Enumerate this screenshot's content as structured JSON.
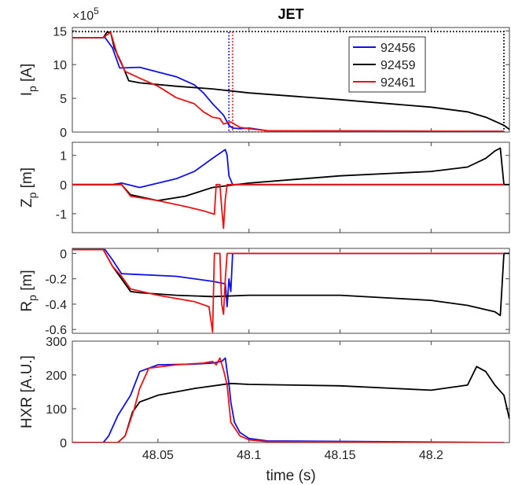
{
  "figure": {
    "title": "JET",
    "xlabel": "time (s)",
    "x_ticks": [
      "48.05",
      "48.1",
      "48.15",
      "48.2"
    ],
    "legend": [
      "92456",
      "92459",
      "92461"
    ]
  },
  "colors": {
    "92456": "#1010ee",
    "92459": "#000000",
    "92461": "#ee1111"
  },
  "chart_data": [
    {
      "type": "line",
      "id": "ip",
      "title": "JET",
      "ylabel_main": "I",
      "ylabel_sub": "p",
      "ylabel_unit": " [A]",
      "multiplier_base": "×10",
      "multiplier_exp": "5",
      "xlim": [
        48.003,
        48.243
      ],
      "ylim": [
        0,
        15.5
      ],
      "y_ticks": [
        "0",
        "5",
        "10",
        "15"
      ],
      "y_tick_values": [
        0,
        5,
        10,
        15
      ],
      "legend": {
        "placement": "top-right",
        "entries": [
          "92456",
          "92459",
          "92461"
        ]
      },
      "series": [
        {
          "name": "92456",
          "color": "#1010ee",
          "x": [
            48.003,
            48.021,
            48.025,
            48.029,
            48.04,
            48.06,
            48.07,
            48.075,
            48.08,
            48.086,
            48.089,
            48.091,
            48.095,
            48.1,
            48.11,
            48.24
          ],
          "y": [
            14.0,
            14.0,
            12.5,
            9.5,
            9.6,
            8.2,
            7.0,
            5.8,
            4.2,
            2.5,
            1.0,
            0.6,
            0.5,
            0.6,
            0.2,
            0.1
          ]
        },
        {
          "name": "92459",
          "color": "#000000",
          "x": [
            48.003,
            48.02,
            48.022,
            48.024,
            48.026,
            48.03,
            48.034,
            48.04,
            48.06,
            48.08,
            48.1,
            48.15,
            48.2,
            48.22,
            48.23,
            48.24,
            48.243
          ],
          "y": [
            14.0,
            14.0,
            14.8,
            14.8,
            12.5,
            10.2,
            7.6,
            7.3,
            6.8,
            6.4,
            5.8,
            4.8,
            3.7,
            3.0,
            2.2,
            1.0,
            0.4
          ]
        },
        {
          "name": "92461",
          "color": "#ee1111",
          "x": [
            48.003,
            48.02,
            48.024,
            48.028,
            48.032,
            48.04,
            48.05,
            48.06,
            48.07,
            48.075,
            48.08,
            48.084,
            48.086,
            48.09,
            48.095,
            48.1,
            48.11,
            48.24
          ],
          "y": [
            14.0,
            14.0,
            14.8,
            11.2,
            9.0,
            8.0,
            6.8,
            5.1,
            4.2,
            3.0,
            2.2,
            2.0,
            1.2,
            1.5,
            0.7,
            0.5,
            0.2,
            0.1
          ]
        }
      ],
      "reference_series": [
        {
          "name": "92456",
          "color": "#1010ee",
          "x": [
            48.003,
            48.089,
            48.089,
            48.24
          ],
          "y": [
            14.9,
            14.9,
            0.0,
            0.0
          ]
        },
        {
          "name": "92461",
          "color": "#ee1111",
          "x": [
            48.003,
            48.091,
            48.091,
            48.24
          ],
          "y": [
            14.9,
            14.9,
            0.0,
            0.0
          ]
        },
        {
          "name": "92459",
          "color": "#000000",
          "x": [
            48.003,
            48.24,
            48.24
          ],
          "y": [
            14.9,
            14.9,
            0.0
          ]
        }
      ]
    },
    {
      "type": "line",
      "id": "zp",
      "ylabel_main": "Z",
      "ylabel_sub": "p",
      "ylabel_unit": " [m]",
      "xlim": [
        48.003,
        48.243
      ],
      "ylim": [
        -1.65,
        1.45
      ],
      "y_ticks": [
        "-1",
        "0",
        "1"
      ],
      "y_tick_values": [
        -1,
        0,
        1
      ],
      "series": [
        {
          "name": "92456",
          "color": "#1010ee",
          "x": [
            48.003,
            48.025,
            48.03,
            48.04,
            48.06,
            48.07,
            48.08,
            48.087,
            48.088,
            48.089,
            48.091,
            48.24
          ],
          "y": [
            0,
            0,
            0.05,
            -0.1,
            0.2,
            0.45,
            0.9,
            1.2,
            1.0,
            0.3,
            0,
            0
          ]
        },
        {
          "name": "92459",
          "color": "#000000",
          "x": [
            48.003,
            48.025,
            48.03,
            48.035,
            48.05,
            48.065,
            48.08,
            48.1,
            48.15,
            48.2,
            48.22,
            48.23,
            48.235,
            48.238,
            48.24,
            48.243
          ],
          "y": [
            0,
            0,
            0,
            -0.35,
            -0.55,
            -0.4,
            -0.1,
            0.05,
            0.3,
            0.45,
            0.6,
            0.9,
            1.15,
            1.25,
            0,
            0
          ]
        },
        {
          "name": "92461",
          "color": "#ee1111",
          "x": [
            48.003,
            48.025,
            48.03,
            48.035,
            48.05,
            48.065,
            48.075,
            48.081,
            48.082,
            48.084,
            48.085,
            48.086,
            48.087,
            48.088,
            48.089,
            48.24
          ],
          "y": [
            0,
            0,
            0,
            -0.4,
            -0.55,
            -0.75,
            -0.9,
            -1.02,
            0,
            0,
            -0.8,
            -1.5,
            -0.5,
            0,
            0,
            0
          ]
        }
      ]
    },
    {
      "type": "line",
      "id": "rp",
      "ylabel_main": "R",
      "ylabel_sub": "p",
      "ylabel_unit": " [m]",
      "xlim": [
        48.003,
        48.243
      ],
      "ylim": [
        -0.63,
        0.04
      ],
      "y_ticks": [
        "0",
        "-0.2",
        "-0.4",
        "-0.6"
      ],
      "y_tick_values": [
        0,
        -0.2,
        -0.4,
        -0.6
      ],
      "series": [
        {
          "name": "92456",
          "color": "#1010ee",
          "x": [
            48.003,
            48.021,
            48.025,
            48.03,
            48.06,
            48.08,
            48.087,
            48.088,
            48.089,
            48.09,
            48.091,
            48.24
          ],
          "y": [
            0.03,
            0.03,
            -0.05,
            -0.16,
            -0.18,
            -0.22,
            -0.24,
            -0.42,
            -0.2,
            -0.3,
            0,
            0
          ]
        },
        {
          "name": "92459",
          "color": "#000000",
          "x": [
            48.003,
            48.02,
            48.025,
            48.03,
            48.035,
            48.04,
            48.06,
            48.08,
            48.1,
            48.15,
            48.2,
            48.22,
            48.235,
            48.238,
            48.24,
            48.243
          ],
          "y": [
            0.03,
            0.03,
            -0.1,
            -0.2,
            -0.3,
            -0.31,
            -0.33,
            -0.34,
            -0.33,
            -0.33,
            -0.37,
            -0.41,
            -0.46,
            -0.49,
            0,
            0
          ]
        },
        {
          "name": "92461",
          "color": "#ee1111",
          "x": [
            48.003,
            48.02,
            48.025,
            48.03,
            48.035,
            48.05,
            48.07,
            48.078,
            48.08,
            48.081,
            48.082,
            48.084,
            48.085,
            48.086,
            48.087,
            48.088,
            48.24
          ],
          "y": [
            0.03,
            0.03,
            -0.1,
            -0.18,
            -0.28,
            -0.33,
            -0.38,
            -0.42,
            -0.62,
            0,
            0,
            0,
            -0.4,
            -0.48,
            -0.2,
            0,
            0
          ]
        }
      ]
    },
    {
      "type": "line",
      "id": "hxr",
      "ylabel_main": "HXR [A.U.]",
      "xlim": [
        48.003,
        48.243
      ],
      "ylim": [
        0,
        300
      ],
      "y_ticks": [
        "0",
        "100",
        "200",
        "300"
      ],
      "y_tick_values": [
        0,
        100,
        200,
        300
      ],
      "series": [
        {
          "name": "92456",
          "color": "#1010ee",
          "x": [
            48.003,
            48.02,
            48.023,
            48.028,
            48.035,
            48.04,
            48.05,
            48.07,
            48.08,
            48.085,
            48.087,
            48.088,
            48.089,
            48.09,
            48.092,
            48.095,
            48.1,
            48.11,
            48.24
          ],
          "y": [
            0,
            0,
            20,
            80,
            140,
            210,
            230,
            232,
            235,
            240,
            250,
            210,
            175,
            120,
            60,
            30,
            12,
            5,
            0
          ]
        },
        {
          "name": "92459",
          "color": "#000000",
          "x": [
            48.003,
            48.028,
            48.032,
            48.036,
            48.04,
            48.05,
            48.07,
            48.09,
            48.1,
            48.15,
            48.2,
            48.22,
            48.225,
            48.23,
            48.235,
            48.24,
            48.243
          ],
          "y": [
            0,
            0,
            20,
            90,
            120,
            140,
            160,
            175,
            172,
            168,
            155,
            170,
            225,
            210,
            170,
            140,
            70
          ]
        },
        {
          "name": "92461",
          "color": "#ee1111",
          "x": [
            48.003,
            48.028,
            48.032,
            48.037,
            48.04,
            48.045,
            48.06,
            48.075,
            48.08,
            48.082,
            48.084,
            48.086,
            48.088,
            48.09,
            48.095,
            48.1,
            48.11,
            48.24
          ],
          "y": [
            0,
            0,
            20,
            100,
            160,
            220,
            230,
            235,
            240,
            230,
            250,
            215,
            170,
            60,
            20,
            8,
            3,
            0
          ]
        }
      ]
    }
  ]
}
